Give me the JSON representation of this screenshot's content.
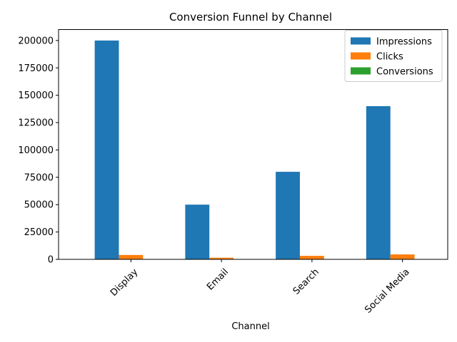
{
  "chart_data": {
    "type": "bar",
    "title": "Conversion Funnel by Channel",
    "xlabel": "Channel",
    "ylabel": "",
    "categories": [
      "Display",
      "Email",
      "Search",
      "Social Media"
    ],
    "series": [
      {
        "name": "Impressions",
        "color": "#1f77b4",
        "values": [
          200000,
          50000,
          80000,
          140000
        ]
      },
      {
        "name": "Clicks",
        "color": "#ff7f0e",
        "values": [
          4000,
          1500,
          3200,
          4500
        ]
      },
      {
        "name": "Conversions",
        "color": "#2ca02c",
        "values": [
          200,
          75,
          160,
          225
        ]
      }
    ],
    "ylim": [
      0,
      210000
    ],
    "yticks": [
      0,
      25000,
      50000,
      75000,
      100000,
      125000,
      150000,
      175000,
      200000
    ],
    "grid": false,
    "legend_position": "top-right"
  }
}
